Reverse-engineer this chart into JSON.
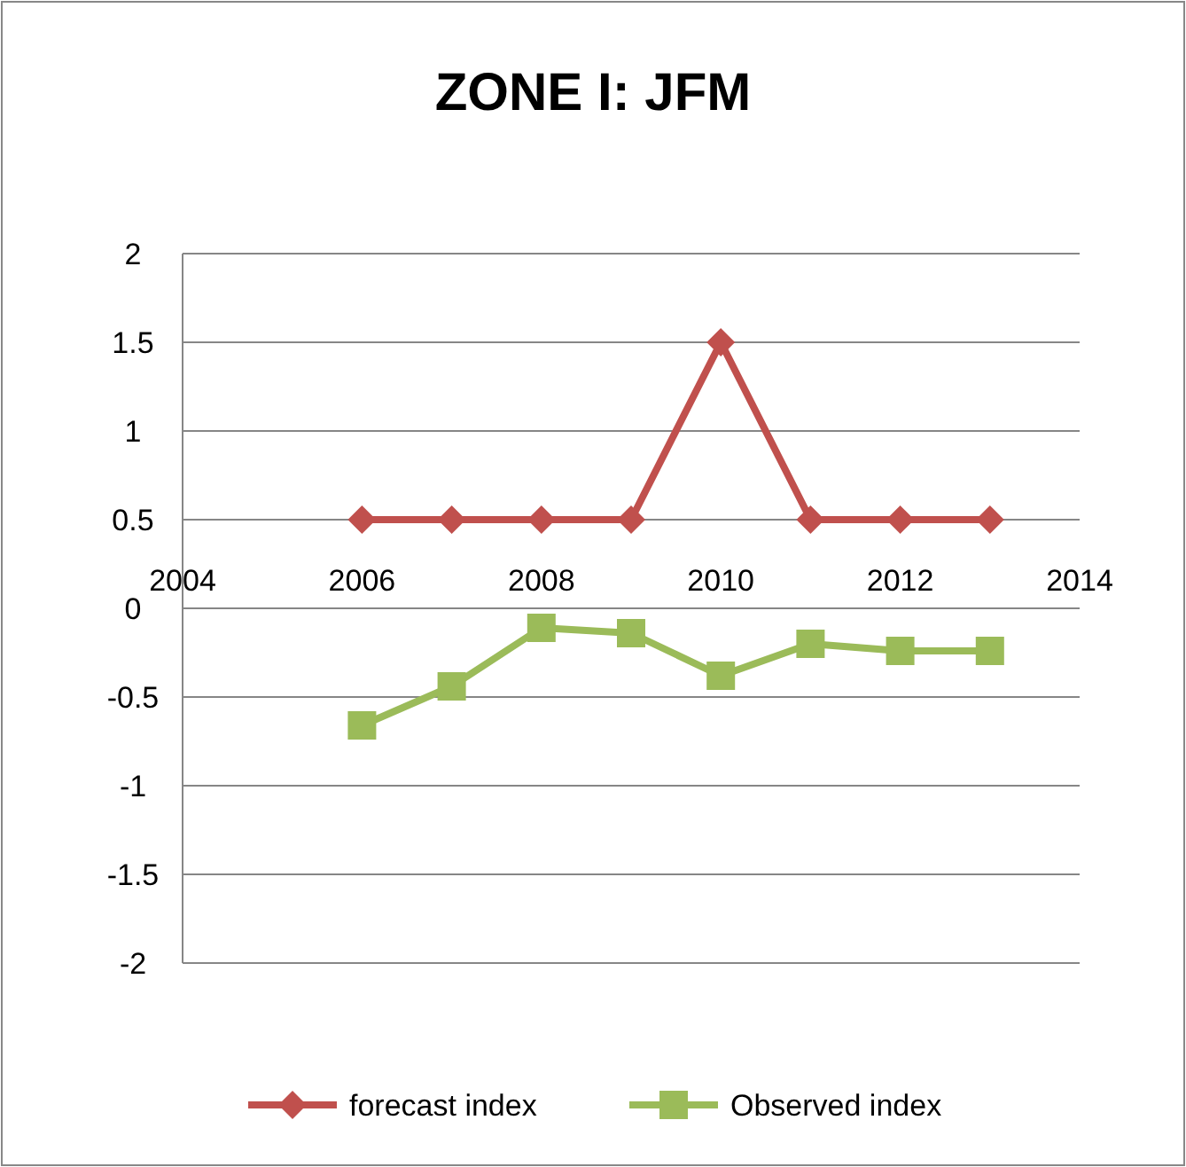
{
  "chart_data": {
    "type": "line",
    "title": "ZONE I: JFM",
    "x": [
      2006,
      2007,
      2008,
      2009,
      2010,
      2011,
      2012,
      2013
    ],
    "series": [
      {
        "name": "forecast index",
        "color": "#c0504d",
        "values": [
          0.5,
          0.5,
          0.5,
          0.5,
          1.5,
          0.5,
          0.5,
          0.5
        ],
        "marker": "diamond"
      },
      {
        "name": "Observed index",
        "color": "#9bbb59",
        "values": [
          -0.66,
          -0.44,
          -0.11,
          -0.14,
          -0.38,
          -0.2,
          -0.24,
          -0.24
        ],
        "marker": "square"
      }
    ],
    "xlim": [
      2004,
      2014
    ],
    "xticks": [
      2004,
      2006,
      2008,
      2010,
      2012,
      2014
    ],
    "ylim": [
      -2,
      2
    ],
    "yticks": [
      -2,
      -1.5,
      -1,
      -0.5,
      0,
      0.5,
      1,
      1.5,
      2
    ],
    "grid": "y",
    "legend": "bottom"
  }
}
